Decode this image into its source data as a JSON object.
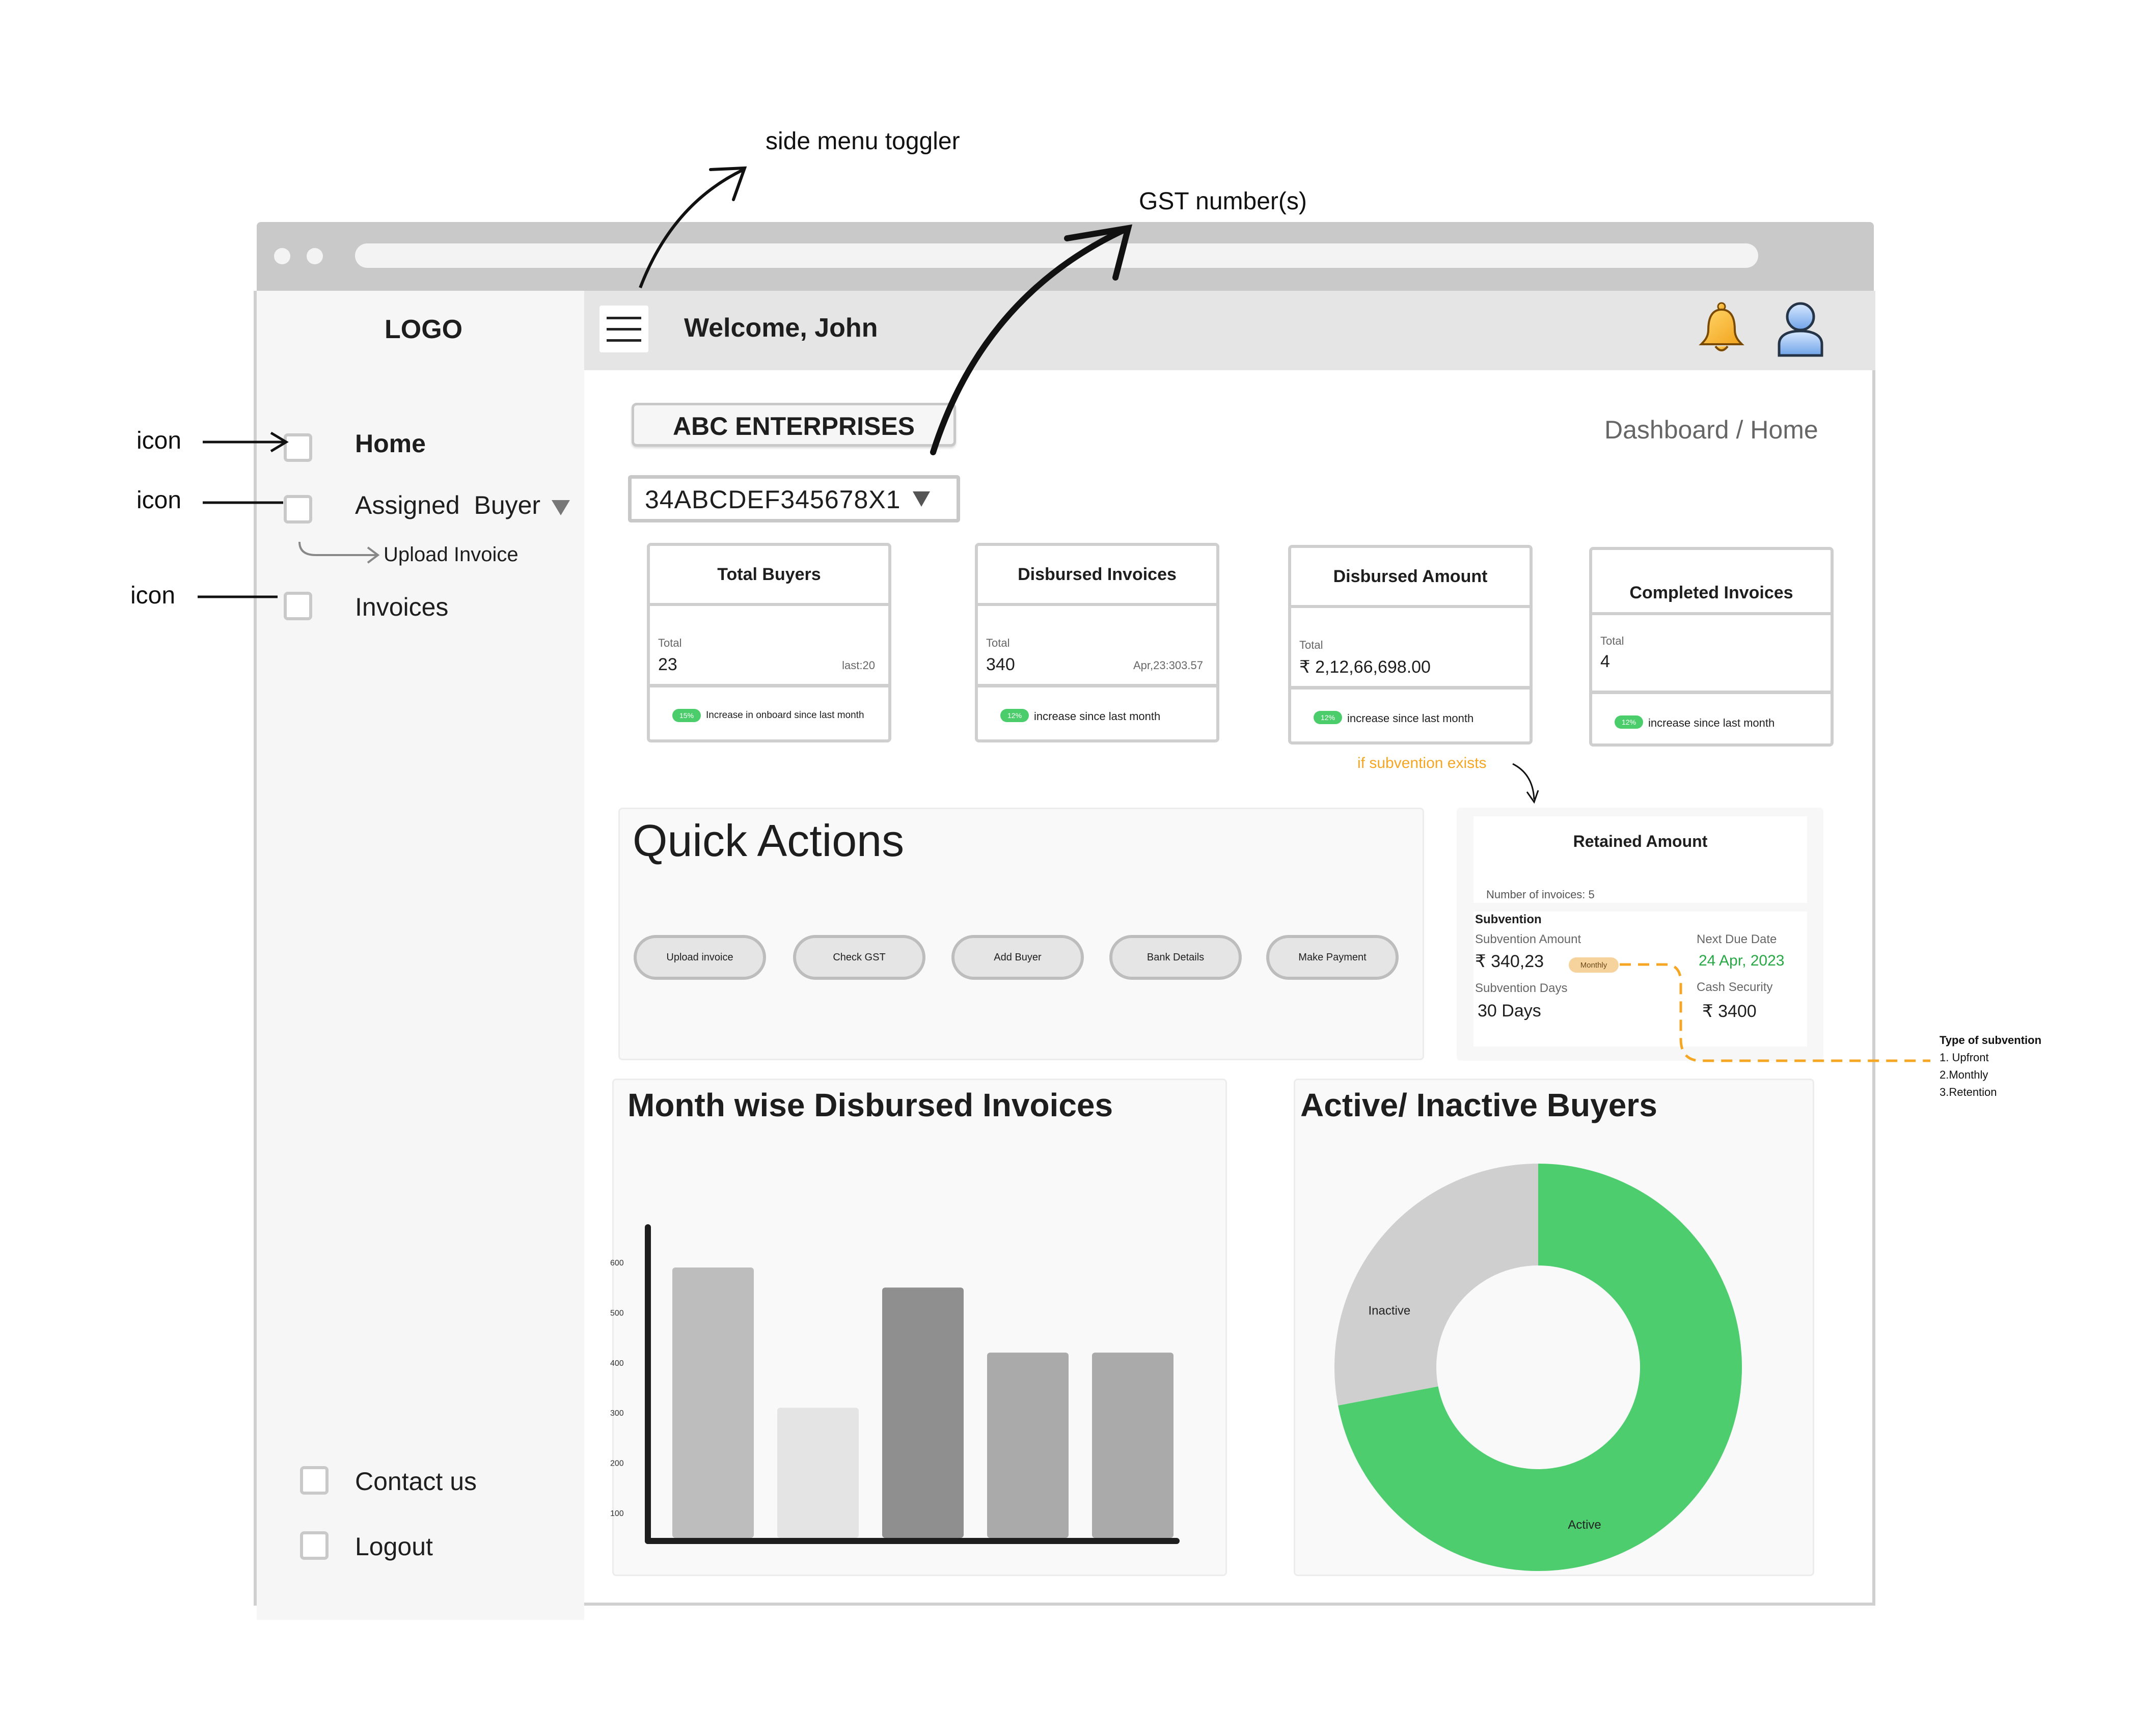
{
  "annotations": {
    "side_menu_toggler": "side menu toggler",
    "gst_numbers": "GST number(s)",
    "icon_home": "icon",
    "icon_buyer": "icon",
    "icon_invoices": "icon",
    "if_subvention": "if subvention exists",
    "type_title": "Type of subvention",
    "type_1": "1. Upfront",
    "type_2": "2.Monthly",
    "type_3": "3.Retention",
    "accent_color": "#f5a623"
  },
  "sidebar": {
    "logo": "LOGO",
    "items": [
      {
        "label": "Home"
      },
      {
        "label": "Assigned  Buyer"
      },
      {
        "label": "Upload Invoice"
      },
      {
        "label": "Invoices"
      }
    ],
    "bottom_items": [
      {
        "label": "Contact us"
      },
      {
        "label": "Logout"
      }
    ]
  },
  "header": {
    "welcome": "Welcome, John",
    "bell_icon": "bell-icon",
    "user_icon": "user-icon"
  },
  "company": {
    "name": "ABC ENTERPRISES",
    "gst": "34ABCDEF345678X1"
  },
  "breadcrumb": "Dashboard / Home",
  "cards": [
    {
      "title": "Total Buyers",
      "total_label": "Total",
      "value": "23",
      "sub": "last:20",
      "pill": "15%",
      "foot": "Increase in onboard since last month"
    },
    {
      "title": "Disbursed Invoices",
      "total_label": "Total",
      "value": "340",
      "sub": "Apr,23:303.57",
      "pill": "12%",
      "foot": "increase since last month"
    },
    {
      "title": "Disbursed Amount",
      "total_label": "Total",
      "value": "₹ 2,12,66,698.00",
      "sub": "",
      "pill": "12%",
      "foot": "increase since last month"
    },
    {
      "title": "Completed Invoices",
      "total_label": "Total",
      "value": "4",
      "sub": "",
      "pill": "12%",
      "foot": "increase since last month"
    }
  ],
  "quick_actions": {
    "title": "Quick Actions",
    "buttons": [
      "Upload invoice",
      "Check GST",
      "Add Buyer",
      "Bank Details",
      "Make Payment"
    ]
  },
  "retained": {
    "title": "Retained Amount",
    "num_invoices": "Number of invoices: 5",
    "subvention_heading": "Subvention",
    "subvention_amount_label": "Subvention Amount",
    "subvention_amount": "₹ 340,23",
    "badge": "Monthly",
    "next_due_label": "Next Due Date",
    "next_due": "24 Apr, 2023",
    "days_label": "Subvention Days",
    "days": "30 Days",
    "cash_label": "Cash Security",
    "cash": "₹ 3400",
    "due_color": "#27a845"
  },
  "charts": {
    "bar_title": "Month wise Disbursed Invoices",
    "donut_title": "Active/ Inactive Buyers"
  },
  "chart_data": [
    {
      "type": "bar",
      "title": "Month wise Disbursed Invoices",
      "categories": [
        "",
        "",
        "",
        "",
        ""
      ],
      "values": [
        590,
        310,
        550,
        420,
        420
      ],
      "ylim": [
        50,
        650
      ],
      "y_ticks": [
        "100",
        "200",
        "300",
        "400",
        "500",
        "600"
      ],
      "bar_colors": [
        "#bdbdbd",
        "#e4e4e4",
        "#8f8f8f",
        "#aaaaaa",
        "#aaaaaa"
      ],
      "grid": false
    },
    {
      "type": "pie",
      "title": "Active/ Inactive Buyers",
      "labels": [
        "Active",
        "Inactive"
      ],
      "values": [
        72,
        28
      ],
      "colors": [
        "#4ecd6f",
        "#cfcfcf"
      ],
      "donut": true
    }
  ]
}
